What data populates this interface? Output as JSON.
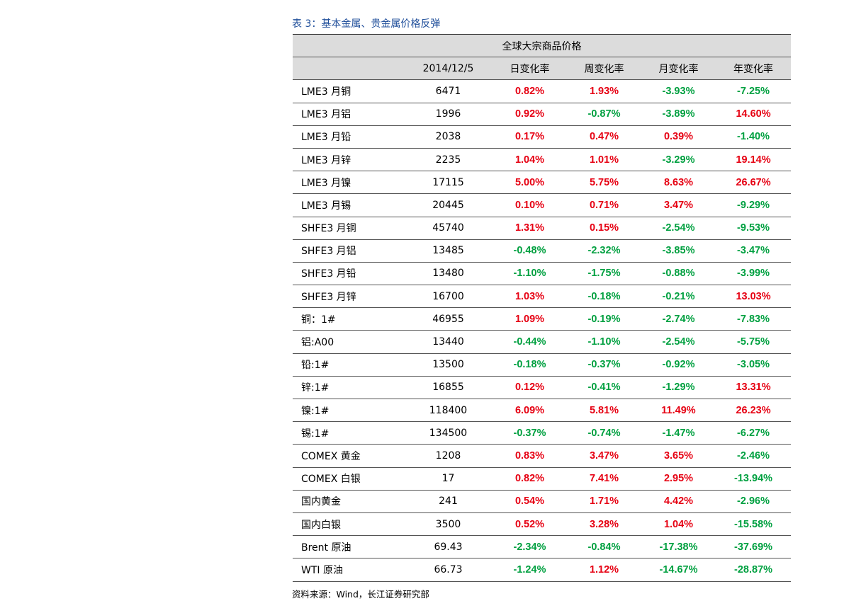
{
  "header": {
    "title": "表 3：基本金属、贵金属价格反弹"
  },
  "table": {
    "group_header": "全球大宗商品价格",
    "columns": [
      "",
      "2014/12/5",
      "日变化率",
      "周变化率",
      "月变化率",
      "年变化率"
    ],
    "rows": [
      [
        "LME3 月铜",
        "6471",
        "0.82%",
        "1.93%",
        "-3.93%",
        "-7.25%"
      ],
      [
        "LME3 月铝",
        "1996",
        "0.92%",
        "-0.87%",
        "-3.89%",
        "14.60%"
      ],
      [
        "LME3 月铅",
        "2038",
        "0.17%",
        "0.47%",
        "0.39%",
        "-1.40%"
      ],
      [
        "LME3 月锌",
        "2235",
        "1.04%",
        "1.01%",
        "-3.29%",
        "19.14%"
      ],
      [
        "LME3 月镍",
        "17115",
        "5.00%",
        "5.75%",
        "8.63%",
        "26.67%"
      ],
      [
        "LME3 月锡",
        "20445",
        "0.10%",
        "0.71%",
        "3.47%",
        "-9.29%"
      ],
      [
        "SHFE3 月铜",
        "45740",
        "1.31%",
        "0.15%",
        "-2.54%",
        "-9.53%"
      ],
      [
        "SHFE3 月铝",
        "13485",
        "-0.48%",
        "-2.32%",
        "-3.85%",
        "-3.47%"
      ],
      [
        "SHFE3 月铅",
        "13480",
        "-1.10%",
        "-1.75%",
        "-0.88%",
        "-3.99%"
      ],
      [
        "SHFE3 月锌",
        "16700",
        "1.03%",
        "-0.18%",
        "-0.21%",
        "13.03%"
      ],
      [
        "铜：1#",
        "46955",
        "1.09%",
        "-0.19%",
        "-2.74%",
        "-7.83%"
      ],
      [
        "铝:A00",
        "13440",
        "-0.44%",
        "-1.10%",
        "-2.54%",
        "-5.75%"
      ],
      [
        "铅:1#",
        "13500",
        "-0.18%",
        "-0.37%",
        "-0.92%",
        "-3.05%"
      ],
      [
        "锌:1#",
        "16855",
        "0.12%",
        "-0.41%",
        "-1.29%",
        "13.31%"
      ],
      [
        "镍:1#",
        "118400",
        "6.09%",
        "5.81%",
        "11.49%",
        "26.23%"
      ],
      [
        "锡:1#",
        "134500",
        "-0.37%",
        "-0.74%",
        "-1.47%",
        "-6.27%"
      ],
      [
        "COMEX 黄金",
        "1208",
        "0.83%",
        "3.47%",
        "3.65%",
        "-2.46%"
      ],
      [
        "COMEX 白银",
        "17",
        "0.82%",
        "7.41%",
        "2.95%",
        "-13.94%"
      ],
      [
        "国内黄金",
        "241",
        "0.54%",
        "1.71%",
        "4.42%",
        "-2.96%"
      ],
      [
        "国内白银",
        "3500",
        "0.52%",
        "3.28%",
        "1.04%",
        "-15.58%"
      ],
      [
        "Brent 原油",
        "69.43",
        "-2.34%",
        "-0.84%",
        "-17.38%",
        "-37.69%"
      ],
      [
        "WTI 原油",
        "66.73",
        "-1.24%",
        "1.12%",
        "-14.67%",
        "-28.87%"
      ]
    ]
  },
  "footer": {
    "source": "资料来源：Wind，长江证券研究部"
  }
}
